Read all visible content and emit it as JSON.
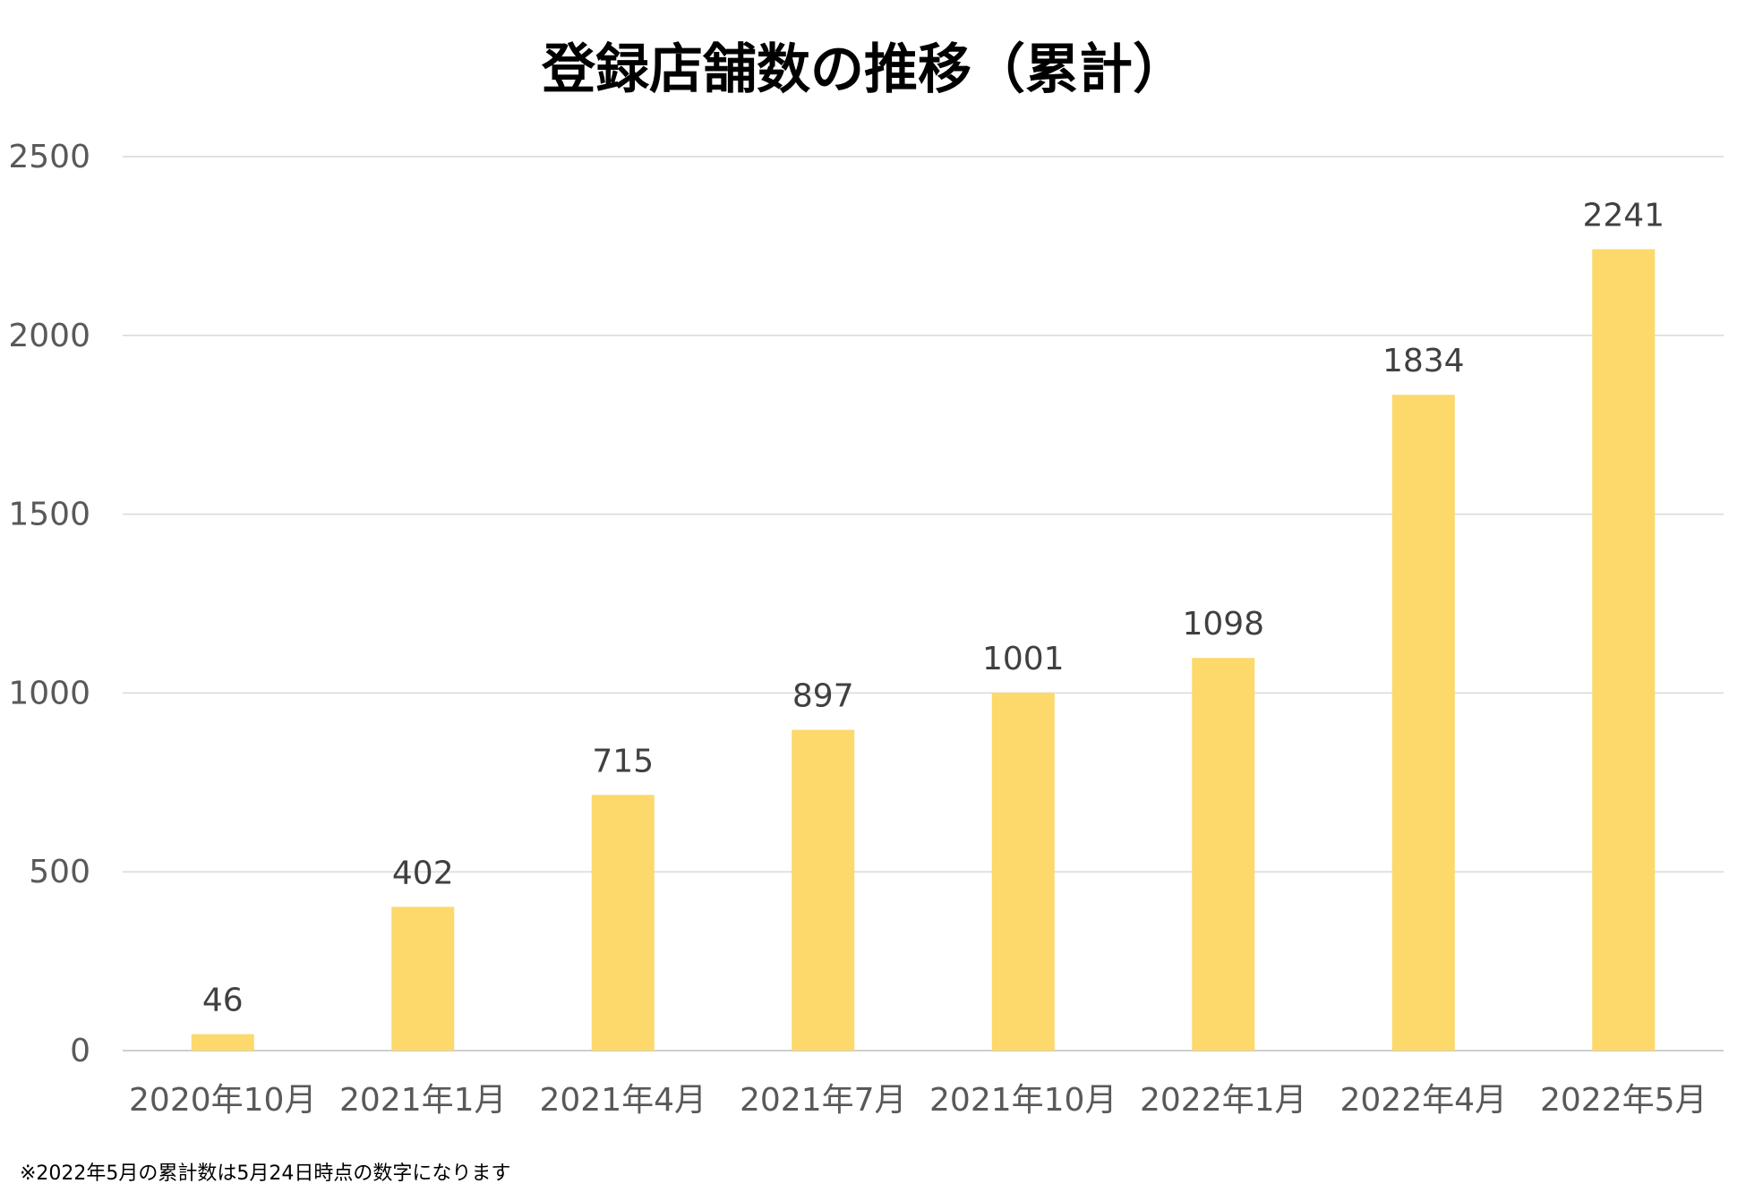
{
  "chart_data": {
    "type": "bar",
    "title": "登録店舗数の推移（累計）",
    "xlabel": "",
    "ylabel": "",
    "categories": [
      "2020年10月",
      "2021年1月",
      "2021年4月",
      "2021年7月",
      "2021年10月",
      "2022年1月",
      "2022年4月",
      "2022年5月"
    ],
    "values": [
      46,
      402,
      715,
      897,
      1001,
      1098,
      1834,
      2241
    ],
    "data_labels": [
      "46",
      "402",
      "715",
      "897",
      "1001",
      "1098",
      "1834",
      "2241"
    ],
    "ylim": [
      0,
      2500
    ],
    "yticks": [
      0,
      500,
      1000,
      1500,
      2000,
      2500
    ],
    "ytick_labels": [
      "0",
      "500",
      "1000",
      "1500",
      "2000",
      "2500"
    ],
    "grid": true,
    "legend": "none",
    "bar_color": "#FDD86B",
    "gridline_color": "#D9D9D9"
  },
  "footnote": "※2022年5月の累計数は5月24日時点の数字になります"
}
